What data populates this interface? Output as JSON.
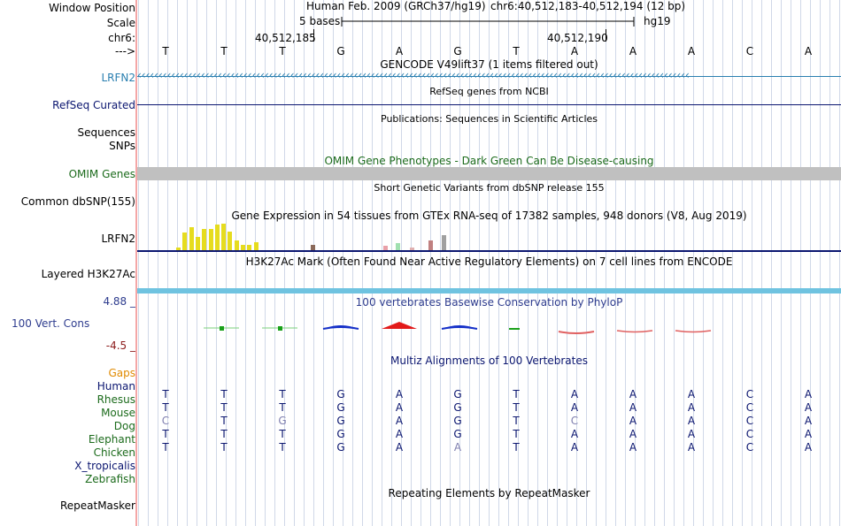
{
  "position_header": {
    "window_position_label": "Window Position",
    "scale_label": "Scale",
    "chrom_label": "chr6:",
    "arrow_label": "--->",
    "assembly_text": "Human Feb. 2009 (GRCh37/hg19)",
    "range_text": "chr6:40,512,183-40,512,194 (12 bp)",
    "scale_text": "5 bases",
    "scale_db": "hg19",
    "coord_left": "40,512,185",
    "coord_right": "40,512,190"
  },
  "reference_bases": [
    "T",
    "T",
    "T",
    "G",
    "A",
    "G",
    "T",
    "A",
    "A",
    "A",
    "C",
    "A"
  ],
  "tracks": {
    "gencode": {
      "title": "GENCODE V49lift37 (1 items filtered out)",
      "label": "LRFN2",
      "strand_glyph": "‹",
      "color": "#2a7fb0"
    },
    "refseq": {
      "title": "RefSeq genes from NCBI",
      "label": "RefSeq Curated",
      "color": "#0b1670"
    },
    "publications": {
      "title": "Publications: Sequences in Scientific Articles",
      "label_line1": "Sequences",
      "label_line2": "SNPs"
    },
    "omim": {
      "title": "OMIM Gene Phenotypes - Dark Green Can Be Disease-causing",
      "label": "OMIM Genes",
      "color": "#1c6b1c"
    },
    "dbsnp": {
      "title": "Short Genetic Variants from dbSNP release 155",
      "label": "Common dbSNP(155)"
    },
    "gtex": {
      "title": "Gene Expression in 54 tissues from GTEx RNA-seq of 17382 samples, 948 donors (V8, Aug 2019)",
      "label": "LRFN2",
      "bar_levels": [
        0.1,
        0.65,
        0.85,
        0.5,
        0.8,
        0.8,
        0.95,
        1.0,
        0.7,
        0.35,
        0.2,
        0.2,
        0.3
      ],
      "minor_bar_levels": [
        0.2,
        0.15,
        0.25,
        0.1,
        0.35,
        0.55
      ]
    },
    "h3k27ac": {
      "title": "H3K27Ac Mark (Often Found Near Active Regulatory Elements) on 7 cell lines from ENCODE",
      "label": "Layered H3K27Ac"
    },
    "phylop": {
      "title": "100 vertebrates Basewise Conservation by PhyloP",
      "label": "100 Vert. Cons",
      "max": "4.88 _",
      "min": "-4.5 _",
      "color": "#2e3c8e"
    },
    "multiz": {
      "title": "Multiz Alignments of 100 Vertebrates",
      "color": "#0b1670"
    },
    "repeatmasker": {
      "title": "Repeating Elements by RepeatMasker",
      "label": "RepeatMasker"
    }
  },
  "alignment": [
    {
      "species": "Gaps",
      "color": "#e08a00",
      "bases": []
    },
    {
      "species": "Human",
      "color": "#0b1670",
      "bases": [
        "T",
        "T",
        "T",
        "G",
        "A",
        "G",
        "T",
        "A",
        "A",
        "A",
        "C",
        "A"
      ]
    },
    {
      "species": "Rhesus",
      "color": "#1c6b1c",
      "bases": [
        "T",
        "T",
        "T",
        "G",
        "A",
        "G",
        "T",
        "A",
        "A",
        "A",
        "C",
        "A"
      ]
    },
    {
      "species": "Mouse",
      "color": "#1c6b1c",
      "bases": [
        "C",
        "T",
        "G",
        "G",
        "A",
        "G",
        "T",
        "C",
        "A",
        "A",
        "C",
        "A"
      ]
    },
    {
      "species": "Dog",
      "color": "#1c6b1c",
      "bases": [
        "T",
        "T",
        "T",
        "G",
        "A",
        "G",
        "T",
        "A",
        "A",
        "A",
        "C",
        "A"
      ]
    },
    {
      "species": "Elephant",
      "color": "#1c6b1c",
      "bases": [
        "T",
        "T",
        "T",
        "G",
        "A",
        "A",
        "T",
        "A",
        "A",
        "A",
        "C",
        "A"
      ]
    },
    {
      "species": "Chicken",
      "color": "#1c6b1c",
      "bases": []
    },
    {
      "species": "X_tropicalis",
      "color": "#0b1670",
      "bases": []
    },
    {
      "species": "Zebrafish",
      "color": "#1c6b1c",
      "bases": []
    }
  ],
  "colors": {
    "base_dark": "#0b1670",
    "base_mismatch": "#8080b0",
    "gtex_yellow": "#e6dc1e",
    "h3k27ac": "#6fc3e0",
    "omim_bar": "#c0c0c0"
  }
}
